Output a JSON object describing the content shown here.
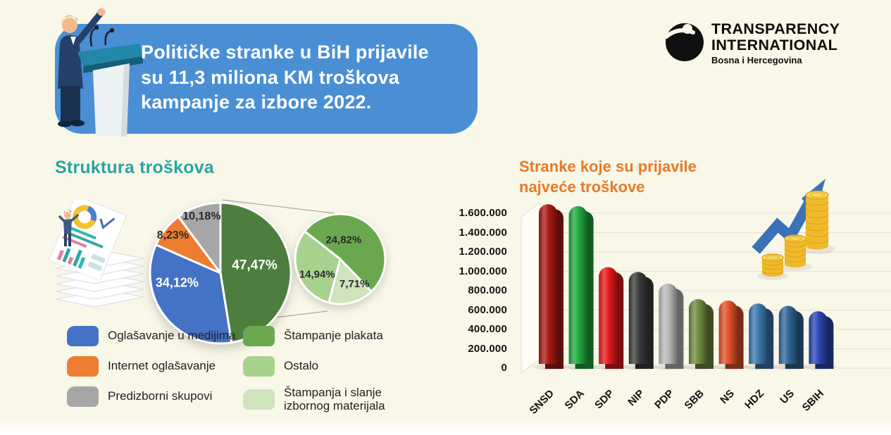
{
  "background_color": "#F8F7E8",
  "header": {
    "box_color": "#4A8FD4",
    "line1": "Političke stranke u BiH prijavile",
    "line2": "su 11,3 miliona KM troškova",
    "line3": "kampanje za izbore 2022."
  },
  "logo": {
    "line1": "TRANSPARENCY",
    "line2": "INTERNATIONAL",
    "line3": "Bosna i Hercegovina"
  },
  "pie_section": {
    "title": "Struktura troškova",
    "title_color": "#2AA5A2",
    "legend": [
      {
        "label": "Oglašavanje u medijima",
        "color": "#4472C4"
      },
      {
        "label": "Internet oglašavanje",
        "color": "#ED7D31"
      },
      {
        "label": "Predizborni skupovi",
        "color": "#A6A6A6"
      },
      {
        "label": "Štampanje plakata",
        "color": "#6AA850"
      },
      {
        "label": "Ostalo",
        "color": "#A9D18E"
      },
      {
        "label": "Štampanja i slanje izbornog materijala",
        "color": "#CFE3BD"
      }
    ]
  },
  "bar_section": {
    "title_line1": "Stranke koje su prijavile",
    "title_line2": "najveće troškove",
    "title_color": "#E87A28"
  },
  "chart_data": [
    {
      "type": "pie",
      "title": "Struktura troškova (glavna)",
      "unit": "%",
      "slices": [
        {
          "label": "Štampanje (plakati, ostalo, izborni materijal)",
          "pct": 47.47,
          "pct_label": "47,47%",
          "color": "#4E7E3D",
          "label_color": "#FFFFFF"
        },
        {
          "label": "Oglašavanje u medijima",
          "pct": 34.12,
          "pct_label": "34,12%",
          "color": "#4472C4",
          "label_color": "#FFFFFF"
        },
        {
          "label": "Internet oglašavanje",
          "pct": 8.23,
          "pct_label": "8,23%",
          "color": "#ED7D31",
          "label_color": "#2B2B2B"
        },
        {
          "label": "Predizborni skupovi",
          "pct": 10.18,
          "pct_label": "10,18%",
          "color": "#A6A6A6",
          "label_color": "#2B2B2B"
        }
      ]
    },
    {
      "type": "pie",
      "title": "Raščlamba zelenog isječka (47,47%)",
      "unit": "%",
      "total": 47.47,
      "slices": [
        {
          "label": "Štampanje plakata",
          "pct": 24.82,
          "pct_label": "24,82%",
          "color": "#6AA850",
          "label_color": "#2B2B2B"
        },
        {
          "label": "Štampanja i slanje izbornog materijala",
          "pct": 7.71,
          "pct_label": "7,71%",
          "color": "#CFE3BD",
          "label_color": "#2B2B2B"
        },
        {
          "label": "Ostalo",
          "pct": 14.94,
          "pct_label": "14,94%",
          "color": "#A9D18E",
          "label_color": "#2B2B2B"
        }
      ]
    },
    {
      "type": "bar",
      "title": "Stranke koje su prijavile najveće troškove",
      "categories": [
        "SNSD",
        "SDA",
        "SDP",
        "NIP",
        "PDP",
        "SBB",
        "NS",
        "HDZ",
        "US",
        "SBIH"
      ],
      "values": [
        1650000,
        1630000,
        1000000,
        950000,
        830000,
        670000,
        655000,
        625000,
        600000,
        545000
      ],
      "colors": [
        "#A81A13",
        "#1FA83C",
        "#E3191C",
        "#3B3B3B",
        "#B8B8B8",
        "#6E8B3D",
        "#E2512A",
        "#3B76AD",
        "#2F6695",
        "#2B46B4"
      ],
      "ylim": [
        0,
        1600000
      ],
      "y_ticks": [
        "1.600.000",
        "1.400.000",
        "1.200.000",
        "1.000.000",
        "800.000",
        "600.000",
        "400.000",
        "200.000",
        "0"
      ],
      "grid": true,
      "unit": "KM"
    }
  ]
}
